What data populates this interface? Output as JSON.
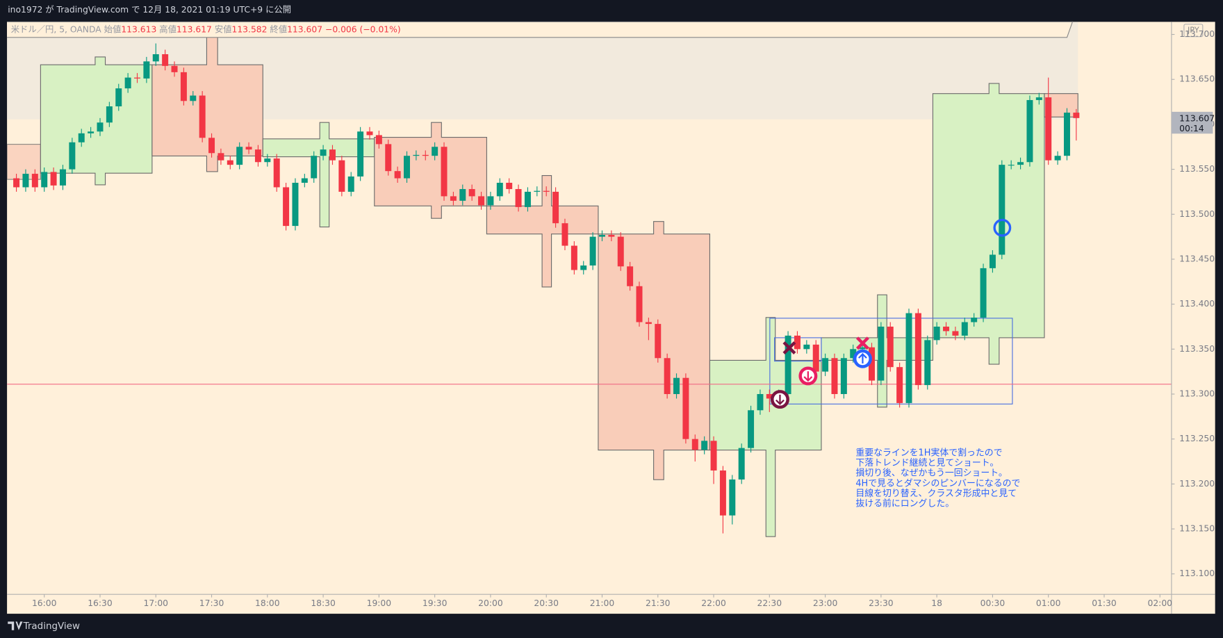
{
  "header": {
    "publish": "ino1972 が TradingView.com で 12月 18, 2021 01:19 UTC+9 に公開"
  },
  "chart_data": {
    "type": "candlestick",
    "symbol": "米ドル／円, 5, OANDA",
    "legend_labels": {
      "open": "始値",
      "high": "高値",
      "low": "安値",
      "close": "終値"
    },
    "change_label": "−0.006 (−0.01%)",
    "currency": "JPY",
    "countdown": "00:14",
    "x": [
      "15:45",
      "15:50",
      "15:55",
      "16:00",
      "16:05",
      "16:10",
      "16:15",
      "16:20",
      "16:25",
      "16:30",
      "16:35",
      "16:40",
      "16:45",
      "16:50",
      "16:55",
      "17:00",
      "17:05",
      "17:10",
      "17:15",
      "17:20",
      "17:25",
      "17:30",
      "17:35",
      "17:40",
      "17:45",
      "17:50",
      "17:55",
      "18:00",
      "18:05",
      "18:10",
      "18:15",
      "18:20",
      "18:25",
      "18:30",
      "18:35",
      "18:40",
      "18:45",
      "18:50",
      "18:55",
      "19:00",
      "19:05",
      "19:10",
      "19:15",
      "19:20",
      "19:25",
      "19:30",
      "19:35",
      "19:40",
      "19:45",
      "19:50",
      "19:55",
      "20:00",
      "20:05",
      "20:10",
      "20:15",
      "20:20",
      "20:25",
      "20:30",
      "20:35",
      "20:40",
      "20:45",
      "20:50",
      "20:55",
      "21:00",
      "21:05",
      "21:10",
      "21:15",
      "21:20",
      "21:25",
      "21:30",
      "21:35",
      "21:40",
      "21:45",
      "21:50",
      "21:55",
      "22:00",
      "22:05",
      "22:10",
      "22:15",
      "22:20",
      "22:25",
      "22:30",
      "22:35",
      "22:40",
      "22:45",
      "22:50",
      "22:55",
      "23:00",
      "23:05",
      "23:10",
      "23:15",
      "23:20",
      "23:25",
      "23:30",
      "23:35",
      "23:40",
      "23:45",
      "23:50",
      "23:55",
      "00:00",
      "00:05",
      "00:10",
      "00:15",
      "00:20",
      "00:25",
      "00:30",
      "00:35",
      "00:40",
      "00:45",
      "00:50",
      "00:55",
      "01:00",
      "01:05",
      "01:10",
      "01:15"
    ],
    "open": [
      113.54,
      113.53,
      113.545,
      113.53,
      113.547,
      113.532,
      113.55,
      113.58,
      113.59,
      113.592,
      113.602,
      113.62,
      113.64,
      113.652,
      113.651,
      113.67,
      113.678,
      113.665,
      113.658,
      113.626,
      113.632,
      113.585,
      113.568,
      113.56,
      113.555,
      113.575,
      113.572,
      113.558,
      113.562,
      113.53,
      113.487,
      113.535,
      113.54,
      113.565,
      113.572,
      113.56,
      113.525,
      113.542,
      113.592,
      113.588,
      113.578,
      113.548,
      113.54,
      113.565,
      113.566,
      113.565,
      113.575,
      113.52,
      113.515,
      113.528,
      113.52,
      113.51,
      113.52,
      113.535,
      113.528,
      113.508,
      113.525,
      113.526,
      113.525,
      113.49,
      113.465,
      113.438,
      113.443,
      113.475,
      113.477,
      113.475,
      113.442,
      113.42,
      113.38,
      113.378,
      113.34,
      113.3,
      113.318,
      113.25,
      113.238,
      113.248,
      113.215,
      113.165,
      113.205,
      113.24,
      113.282,
      113.3,
      113.295,
      113.3,
      113.365,
      113.35,
      113.355,
      113.325,
      113.34,
      113.3,
      113.34,
      113.35,
      113.352,
      113.315,
      113.375,
      113.33,
      113.29,
      113.39,
      113.31,
      113.36,
      113.375,
      113.37,
      113.365,
      113.38,
      113.385,
      113.44,
      113.455,
      113.555,
      113.555,
      113.558,
      113.627,
      113.63,
      113.56,
      113.565,
      113.613
    ],
    "high": [
      113.545,
      113.55,
      113.55,
      113.552,
      113.552,
      113.555,
      113.585,
      113.595,
      113.597,
      113.607,
      113.625,
      113.645,
      113.657,
      113.657,
      113.675,
      113.69,
      113.683,
      113.67,
      113.663,
      113.637,
      113.637,
      113.59,
      113.573,
      113.565,
      113.58,
      113.58,
      113.577,
      113.567,
      113.567,
      113.535,
      113.54,
      113.545,
      113.57,
      113.577,
      113.577,
      113.565,
      113.547,
      113.597,
      113.597,
      113.593,
      113.583,
      113.553,
      113.57,
      113.571,
      113.571,
      113.58,
      113.58,
      113.525,
      113.533,
      113.533,
      113.525,
      113.525,
      113.54,
      113.54,
      113.533,
      113.53,
      113.531,
      113.531,
      113.53,
      113.495,
      113.47,
      113.448,
      113.48,
      113.482,
      113.482,
      113.48,
      113.447,
      113.425,
      113.385,
      113.383,
      113.345,
      113.323,
      113.323,
      113.255,
      113.253,
      113.253,
      113.22,
      113.21,
      113.245,
      113.287,
      113.305,
      113.305,
      113.305,
      113.37,
      113.37,
      113.36,
      113.36,
      113.345,
      113.345,
      113.345,
      113.355,
      113.357,
      113.357,
      113.38,
      113.38,
      113.335,
      113.395,
      113.395,
      113.365,
      113.38,
      113.38,
      113.375,
      113.385,
      113.39,
      113.445,
      113.46,
      113.56,
      113.56,
      113.563,
      113.632,
      113.635,
      113.652,
      113.57,
      113.618,
      113.617
    ],
    "low": [
      113.525,
      113.525,
      113.525,
      113.525,
      113.527,
      113.527,
      113.545,
      113.575,
      113.585,
      113.587,
      113.597,
      113.615,
      113.635,
      113.646,
      113.646,
      113.665,
      113.66,
      113.653,
      113.621,
      113.621,
      113.58,
      113.563,
      113.555,
      113.55,
      113.55,
      113.567,
      113.553,
      113.553,
      113.525,
      113.482,
      113.482,
      113.53,
      113.535,
      113.56,
      113.555,
      113.52,
      113.52,
      113.537,
      113.583,
      113.573,
      113.543,
      113.535,
      113.535,
      113.56,
      113.56,
      113.56,
      113.515,
      113.51,
      113.51,
      113.515,
      113.505,
      113.505,
      113.515,
      113.523,
      113.503,
      113.503,
      113.52,
      113.52,
      113.485,
      113.46,
      113.433,
      113.433,
      113.438,
      113.47,
      113.47,
      113.437,
      113.415,
      113.375,
      113.36,
      113.335,
      113.295,
      113.295,
      113.245,
      113.225,
      113.233,
      113.2,
      113.145,
      113.155,
      113.2,
      113.235,
      113.277,
      113.28,
      113.29,
      113.295,
      113.345,
      113.345,
      113.32,
      113.32,
      113.295,
      113.295,
      113.335,
      113.345,
      113.31,
      113.31,
      113.325,
      113.285,
      113.285,
      113.305,
      113.305,
      113.355,
      113.365,
      113.36,
      113.36,
      113.375,
      113.38,
      113.435,
      113.45,
      113.55,
      113.55,
      113.553,
      113.622,
      113.555,
      113.555,
      113.56,
      113.582
    ],
    "close": [
      113.53,
      113.545,
      113.53,
      113.547,
      113.532,
      113.55,
      113.58,
      113.59,
      113.592,
      113.602,
      113.62,
      113.64,
      113.652,
      113.651,
      113.67,
      113.678,
      113.665,
      113.658,
      113.626,
      113.632,
      113.585,
      113.568,
      113.56,
      113.555,
      113.575,
      113.572,
      113.558,
      113.562,
      113.53,
      113.487,
      113.535,
      113.54,
      113.565,
      113.572,
      113.56,
      113.525,
      113.542,
      113.592,
      113.588,
      113.578,
      113.548,
      113.54,
      113.565,
      113.566,
      113.565,
      113.575,
      113.52,
      113.515,
      113.528,
      113.52,
      113.51,
      113.52,
      113.535,
      113.528,
      113.508,
      113.525,
      113.526,
      113.525,
      113.49,
      113.465,
      113.438,
      113.443,
      113.475,
      113.477,
      113.475,
      113.442,
      113.42,
      113.38,
      113.378,
      113.34,
      113.3,
      113.318,
      113.25,
      113.238,
      113.248,
      113.215,
      113.165,
      113.205,
      113.24,
      113.282,
      113.3,
      113.295,
      113.3,
      113.365,
      113.35,
      113.355,
      113.325,
      113.34,
      113.3,
      113.34,
      113.35,
      113.352,
      113.315,
      113.375,
      113.33,
      113.29,
      113.39,
      113.31,
      113.36,
      113.375,
      113.37,
      113.365,
      113.38,
      113.385,
      113.44,
      113.455,
      113.555,
      113.555,
      113.558,
      113.627,
      113.63,
      113.56,
      113.565,
      113.613,
      113.607
    ],
    "up_color": "#089981",
    "down_color": "#f23645",
    "ylim": [
      113.079,
      113.714
    ],
    "yticks": [
      {
        "value": 113.1,
        "label": "113.100"
      },
      {
        "value": 113.15,
        "label": "113.150"
      },
      {
        "value": 113.2,
        "label": "113.200"
      },
      {
        "value": 113.25,
        "label": "113.250"
      },
      {
        "value": 113.3,
        "label": "113.300"
      },
      {
        "value": 113.35,
        "label": "113.350"
      },
      {
        "value": 113.4,
        "label": "113.400"
      },
      {
        "value": 113.45,
        "label": "113.450"
      },
      {
        "value": 113.5,
        "label": "113.500"
      },
      {
        "value": 113.55,
        "label": "113.550"
      },
      {
        "value": 113.6,
        "label": "113.600"
      },
      {
        "value": 113.65,
        "label": "113.650"
      },
      {
        "value": 113.7,
        "label": "113.700"
      }
    ],
    "xticks": [
      "16:00",
      "16:30",
      "17:00",
      "17:30",
      "18:00",
      "18:30",
      "19:00",
      "19:30",
      "20:00",
      "20:30",
      "21:00",
      "21:30",
      "22:00",
      "22:30",
      "23:00",
      "23:30",
      {
        "value": "00:00",
        "label": "18"
      },
      "00:30",
      "01:00",
      "01:30",
      "02:00"
    ],
    "grid": false,
    "hline": 113.311,
    "annotation": [
      "重要なラインを1H実体で割ったので",
      "下落トレンド継続と見てショート。",
      "損切り後、なぜかもう一回ショート。",
      "4Hで見るとダマシのピンバーになるので",
      "目線を切り替え、クラスタ形成中と見て",
      "抜ける前にロングした。"
    ]
  },
  "footer": {
    "brand": "TradingView"
  }
}
